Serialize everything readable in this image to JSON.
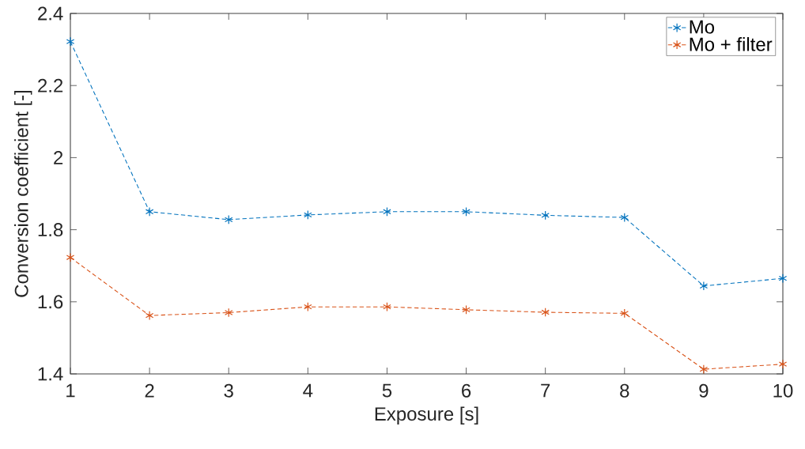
{
  "chart_data": {
    "type": "line",
    "xlabel": "Exposure [s]",
    "ylabel": "Conversion coefficient [-]",
    "x": [
      1,
      2,
      3,
      4,
      5,
      6,
      7,
      8,
      9,
      10
    ],
    "series": [
      {
        "name": "Mo",
        "color": "#0072bd",
        "values": [
          2.322,
          1.85,
          1.828,
          1.841,
          1.85,
          1.85,
          1.84,
          1.834,
          1.644,
          1.665
        ]
      },
      {
        "name": "Mo + filter",
        "color": "#d95319",
        "values": [
          1.723,
          1.562,
          1.57,
          1.586,
          1.586,
          1.578,
          1.571,
          1.568,
          1.413,
          1.427
        ]
      }
    ],
    "xlim": [
      1,
      10
    ],
    "xticks": [
      1,
      2,
      3,
      4,
      5,
      6,
      7,
      8,
      9,
      10
    ],
    "ylim": [
      1.4,
      2.4
    ],
    "yticks": [
      1.4,
      1.6,
      1.8,
      2,
      2.2,
      2.4
    ],
    "grid": false,
    "legend": "top right",
    "marker": "cross",
    "line_style": "dashed"
  }
}
